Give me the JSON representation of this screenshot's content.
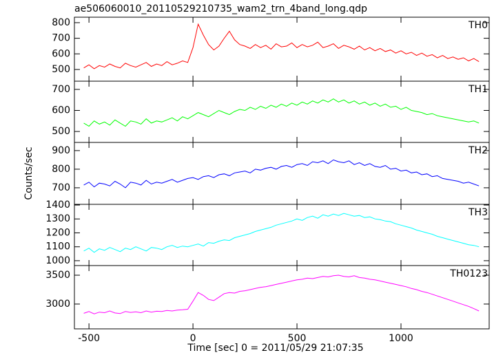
{
  "chart_data": [
    {
      "type": "line",
      "title": "ae506060010_20110529210735_wam2_trn_4band_long.qdp",
      "x": [
        -525,
        -500,
        -475,
        -450,
        -425,
        -400,
        -375,
        -350,
        -325,
        -300,
        -275,
        -250,
        -225,
        -200,
        -175,
        -150,
        -125,
        -100,
        -75,
        -50,
        -25,
        0,
        25,
        50,
        75,
        100,
        125,
        150,
        175,
        200,
        225,
        250,
        275,
        300,
        325,
        350,
        375,
        400,
        425,
        450,
        475,
        500,
        525,
        550,
        575,
        600,
        625,
        650,
        675,
        700,
        725,
        750,
        775,
        800,
        825,
        850,
        875,
        900,
        925,
        950,
        975,
        1000,
        1025,
        1050,
        1075,
        1100,
        1125,
        1150,
        1175,
        1200,
        1225,
        1250,
        1275,
        1300,
        1325,
        1350,
        1375
      ],
      "series": [
        {
          "name": "TH0",
          "color": "#ff0000",
          "values": [
            510,
            530,
            505,
            525,
            515,
            535,
            520,
            510,
            540,
            525,
            515,
            530,
            545,
            520,
            535,
            525,
            550,
            530,
            540,
            555,
            545,
            640,
            790,
            720,
            660,
            625,
            650,
            700,
            745,
            690,
            660,
            650,
            635,
            660,
            640,
            655,
            630,
            665,
            645,
            650,
            670,
            640,
            660,
            645,
            655,
            675,
            640,
            650,
            665,
            635,
            655,
            645,
            630,
            650,
            625,
            640,
            620,
            635,
            615,
            625,
            605,
            620,
            600,
            610,
            590,
            605,
            585,
            595,
            575,
            590,
            570,
            580,
            565,
            575,
            555,
            570,
            550
          ]
        }
      ],
      "xlim": [
        -570,
        1424
      ],
      "xticks": [
        -500,
        0,
        500,
        1000
      ],
      "ylim": [
        425,
        835
      ],
      "yticks": [
        500,
        600,
        700,
        800
      ]
    },
    {
      "type": "line",
      "x": [
        -525,
        -500,
        -475,
        -450,
        -425,
        -400,
        -375,
        -350,
        -325,
        -300,
        -275,
        -250,
        -225,
        -200,
        -175,
        -150,
        -125,
        -100,
        -75,
        -50,
        -25,
        0,
        25,
        50,
        75,
        100,
        125,
        150,
        175,
        200,
        225,
        250,
        275,
        300,
        325,
        350,
        375,
        400,
        425,
        450,
        475,
        500,
        525,
        550,
        575,
        600,
        625,
        650,
        675,
        700,
        725,
        750,
        775,
        800,
        825,
        850,
        875,
        900,
        925,
        950,
        975,
        1000,
        1025,
        1050,
        1075,
        1100,
        1125,
        1150,
        1175,
        1200,
        1225,
        1250,
        1275,
        1300,
        1325,
        1350,
        1375
      ],
      "series": [
        {
          "name": "TH1",
          "color": "#00ff00",
          "values": [
            540,
            525,
            550,
            535,
            545,
            530,
            555,
            540,
            525,
            550,
            545,
            535,
            560,
            540,
            550,
            545,
            555,
            565,
            550,
            570,
            560,
            575,
            590,
            580,
            570,
            585,
            600,
            590,
            580,
            595,
            605,
            600,
            615,
            605,
            620,
            610,
            625,
            615,
            630,
            620,
            635,
            625,
            640,
            630,
            645,
            635,
            650,
            640,
            655,
            640,
            650,
            635,
            645,
            630,
            640,
            625,
            635,
            620,
            630,
            615,
            620,
            605,
            615,
            600,
            595,
            590,
            580,
            585,
            575,
            570,
            565,
            560,
            555,
            550,
            545,
            550,
            540
          ]
        }
      ],
      "xlim": [
        -570,
        1424
      ],
      "xticks": [
        -500,
        0,
        500,
        1000
      ],
      "ylim": [
        448,
        739
      ],
      "yticks": [
        500,
        600,
        700
      ]
    },
    {
      "type": "line",
      "ylabel": "Counts/sec",
      "x": [
        -525,
        -500,
        -475,
        -450,
        -425,
        -400,
        -375,
        -350,
        -325,
        -300,
        -275,
        -250,
        -225,
        -200,
        -175,
        -150,
        -125,
        -100,
        -75,
        -50,
        -25,
        0,
        25,
        50,
        75,
        100,
        125,
        150,
        175,
        200,
        225,
        250,
        275,
        300,
        325,
        350,
        375,
        400,
        425,
        450,
        475,
        500,
        525,
        550,
        575,
        600,
        625,
        650,
        675,
        700,
        725,
        750,
        775,
        800,
        825,
        850,
        875,
        900,
        925,
        950,
        975,
        1000,
        1025,
        1050,
        1075,
        1100,
        1125,
        1150,
        1175,
        1200,
        1225,
        1250,
        1275,
        1300,
        1325,
        1350,
        1375
      ],
      "series": [
        {
          "name": "TH2",
          "color": "#0000ff",
          "values": [
            715,
            730,
            705,
            725,
            720,
            710,
            735,
            720,
            700,
            730,
            725,
            715,
            740,
            720,
            730,
            725,
            735,
            745,
            730,
            740,
            750,
            755,
            745,
            760,
            765,
            755,
            770,
            775,
            765,
            780,
            785,
            790,
            780,
            800,
            795,
            805,
            810,
            800,
            815,
            820,
            810,
            825,
            830,
            820,
            840,
            835,
            845,
            830,
            850,
            840,
            835,
            845,
            825,
            835,
            820,
            830,
            815,
            810,
            820,
            800,
            805,
            790,
            795,
            780,
            785,
            770,
            775,
            760,
            765,
            750,
            745,
            740,
            735,
            725,
            730,
            720,
            710
          ]
        }
      ],
      "xlim": [
        -570,
        1424
      ],
      "xticks": [
        -500,
        0,
        500,
        1000
      ],
      "ylim": [
        611,
        944
      ],
      "yticks": [
        700,
        800,
        900
      ]
    },
    {
      "type": "line",
      "x": [
        -525,
        -500,
        -475,
        -450,
        -425,
        -400,
        -375,
        -350,
        -325,
        -300,
        -275,
        -250,
        -225,
        -200,
        -175,
        -150,
        -125,
        -100,
        -75,
        -50,
        -25,
        0,
        25,
        50,
        75,
        100,
        125,
        150,
        175,
        200,
        225,
        250,
        275,
        300,
        325,
        350,
        375,
        400,
        425,
        450,
        475,
        500,
        525,
        550,
        575,
        600,
        625,
        650,
        675,
        700,
        725,
        750,
        775,
        800,
        825,
        850,
        875,
        900,
        925,
        950,
        975,
        1000,
        1025,
        1050,
        1075,
        1100,
        1125,
        1150,
        1175,
        1200,
        1225,
        1250,
        1275,
        1300,
        1325,
        1350,
        1375
      ],
      "series": [
        {
          "name": "TH3",
          "color": "#00ffff",
          "values": [
            1070,
            1090,
            1060,
            1085,
            1075,
            1095,
            1080,
            1065,
            1090,
            1080,
            1100,
            1085,
            1070,
            1095,
            1090,
            1080,
            1100,
            1110,
            1095,
            1105,
            1100,
            1110,
            1120,
            1105,
            1130,
            1125,
            1140,
            1150,
            1145,
            1165,
            1175,
            1185,
            1195,
            1210,
            1220,
            1230,
            1240,
            1255,
            1265,
            1275,
            1285,
            1300,
            1290,
            1310,
            1320,
            1305,
            1330,
            1320,
            1335,
            1325,
            1340,
            1330,
            1320,
            1325,
            1310,
            1315,
            1300,
            1295,
            1285,
            1280,
            1265,
            1255,
            1245,
            1235,
            1220,
            1210,
            1200,
            1190,
            1175,
            1165,
            1155,
            1145,
            1135,
            1125,
            1115,
            1110,
            1100
          ]
        }
      ],
      "xlim": [
        -570,
        1424
      ],
      "xticks": [
        -500,
        0,
        500,
        1000
      ],
      "ylim": [
        965,
        1405
      ],
      "yticks": [
        1000,
        1100,
        1200,
        1300,
        1400
      ]
    },
    {
      "type": "line",
      "xlabel": "Time [sec] 0 = 2011/05/29 21:07:35",
      "x": [
        -525,
        -500,
        -475,
        -450,
        -425,
        -400,
        -375,
        -350,
        -325,
        -300,
        -275,
        -250,
        -225,
        -200,
        -175,
        -150,
        -125,
        -100,
        -75,
        -50,
        -25,
        0,
        25,
        50,
        75,
        100,
        125,
        150,
        175,
        200,
        225,
        250,
        275,
        300,
        325,
        350,
        375,
        400,
        425,
        450,
        475,
        500,
        525,
        550,
        575,
        600,
        625,
        650,
        675,
        700,
        725,
        750,
        775,
        800,
        825,
        850,
        875,
        900,
        925,
        950,
        975,
        1000,
        1025,
        1050,
        1075,
        1100,
        1125,
        1150,
        1175,
        1200,
        1225,
        1250,
        1275,
        1300,
        1325,
        1350,
        1375
      ],
      "series": [
        {
          "name": "TH0123",
          "color": "#ff00ff",
          "values": [
            2840,
            2870,
            2830,
            2860,
            2850,
            2880,
            2845,
            2835,
            2870,
            2855,
            2865,
            2850,
            2880,
            2860,
            2875,
            2870,
            2890,
            2880,
            2895,
            2900,
            2910,
            3050,
            3200,
            3150,
            3080,
            3060,
            3120,
            3180,
            3200,
            3190,
            3220,
            3230,
            3250,
            3270,
            3290,
            3300,
            3320,
            3340,
            3360,
            3380,
            3400,
            3420,
            3430,
            3450,
            3440,
            3460,
            3480,
            3470,
            3490,
            3500,
            3480,
            3470,
            3490,
            3460,
            3450,
            3430,
            3420,
            3400,
            3380,
            3360,
            3340,
            3320,
            3300,
            3270,
            3250,
            3220,
            3200,
            3170,
            3140,
            3110,
            3080,
            3050,
            3020,
            2990,
            2960,
            2920,
            2880
          ]
        }
      ],
      "xlim": [
        -570,
        1424
      ],
      "xticks": [
        -500,
        0,
        500,
        1000
      ],
      "ylim": [
        2570,
        3667
      ],
      "yticks": [
        3000,
        3500
      ],
      "show_x_tick_labels": true
    }
  ]
}
